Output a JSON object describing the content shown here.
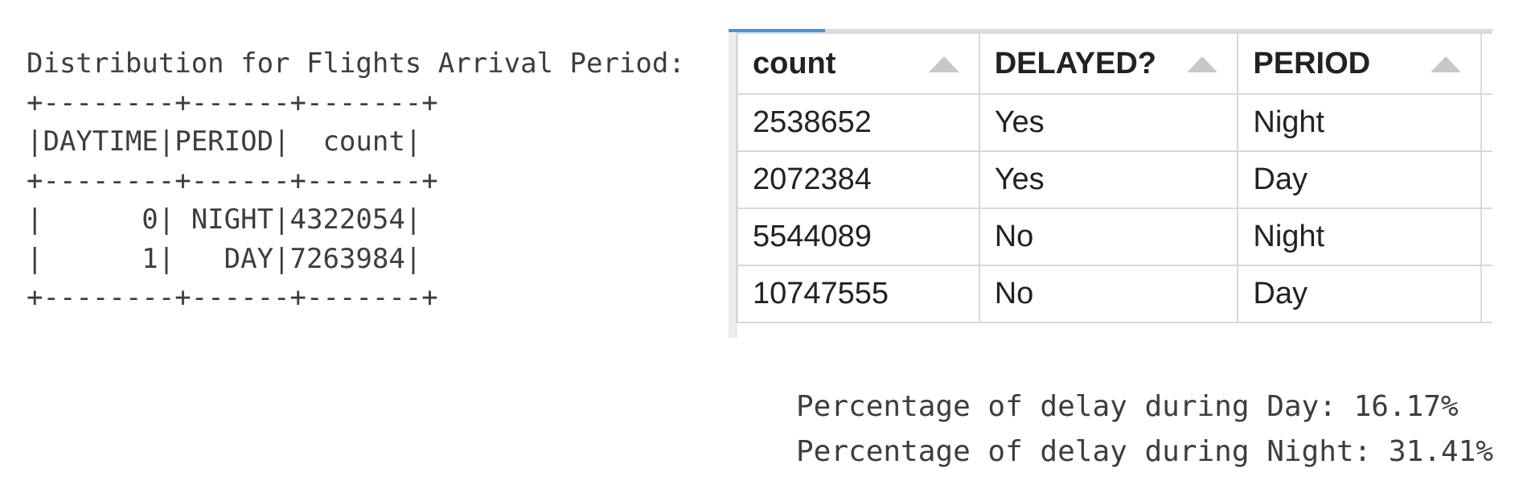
{
  "left_output": {
    "title": "Distribution for Flights Arrival Period:",
    "lines": [
      "+--------+------+-------+",
      "|DAYTIME|PERIOD|  count|",
      "+--------+------+-------+",
      "|      0| NIGHT|4322054|",
      "|      1|   DAY|7263984|",
      "+--------+------+-------+"
    ]
  },
  "grid": {
    "columns": [
      {
        "label": "count"
      },
      {
        "label": "DELAYED?"
      },
      {
        "label": "PERIOD"
      }
    ],
    "rows": [
      [
        "2538652",
        "Yes",
        "Night"
      ],
      [
        "2072384",
        "Yes",
        "Day"
      ],
      [
        "5544089",
        "No",
        "Night"
      ],
      [
        "10747555",
        "No",
        "Day"
      ]
    ],
    "accent_color": "#4a90e2"
  },
  "summary_output": {
    "lines": [
      "Percentage of delay during Day: 16.17%",
      "Percentage of delay during Night: 31.41%"
    ]
  }
}
